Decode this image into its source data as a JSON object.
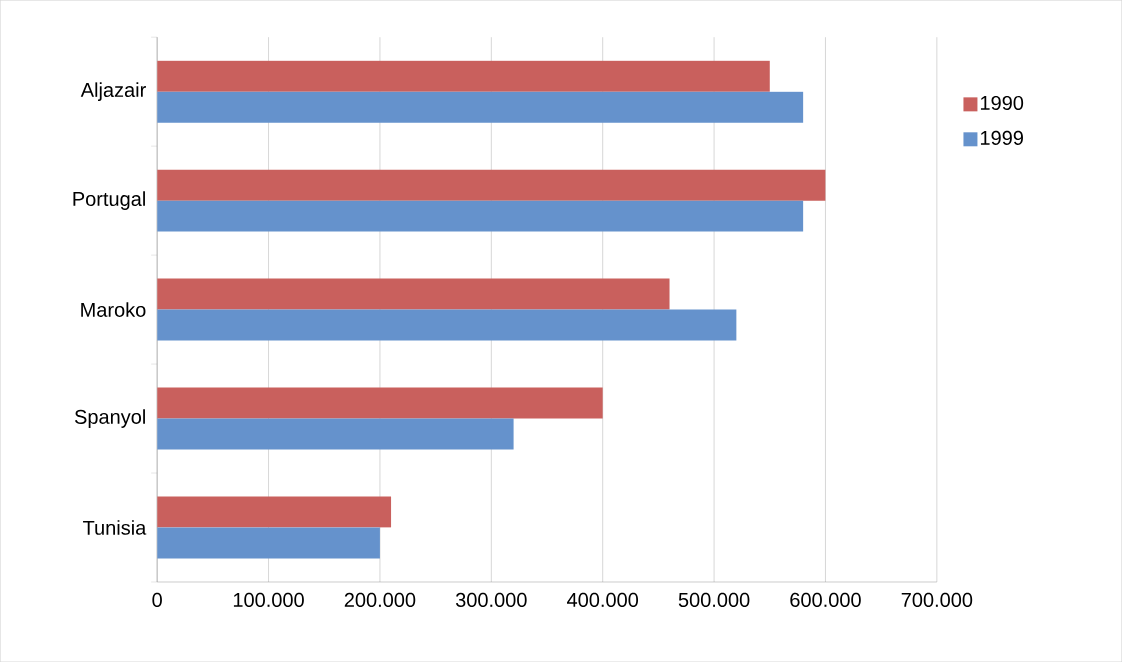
{
  "chart_data": {
    "type": "bar",
    "orientation": "horizontal",
    "categories": [
      "Aljazair",
      "Portugal",
      "Maroko",
      "Spanyol",
      "Tunisia"
    ],
    "series": [
      {
        "name": "1990",
        "color": "#c9605d",
        "values": [
          550000,
          600000,
          460000,
          400000,
          210000
        ]
      },
      {
        "name": "1999",
        "color": "#6592cc",
        "values": [
          580000,
          580000,
          520000,
          320000,
          200000
        ]
      }
    ],
    "xlim": [
      0,
      700000
    ],
    "xticks": [
      0,
      {
        "value": 100000,
        "label": "100.000"
      },
      {
        "value": 200000,
        "label": "200.000"
      },
      {
        "value": 300000,
        "label": "300.000"
      },
      {
        "value": 400000,
        "label": "400.000"
      },
      {
        "value": 500000,
        "label": "500.000"
      },
      {
        "value": 600000,
        "label": "600.000"
      },
      {
        "value": 700000,
        "label": "700.000"
      }
    ],
    "grid": "x",
    "legend": "right"
  }
}
